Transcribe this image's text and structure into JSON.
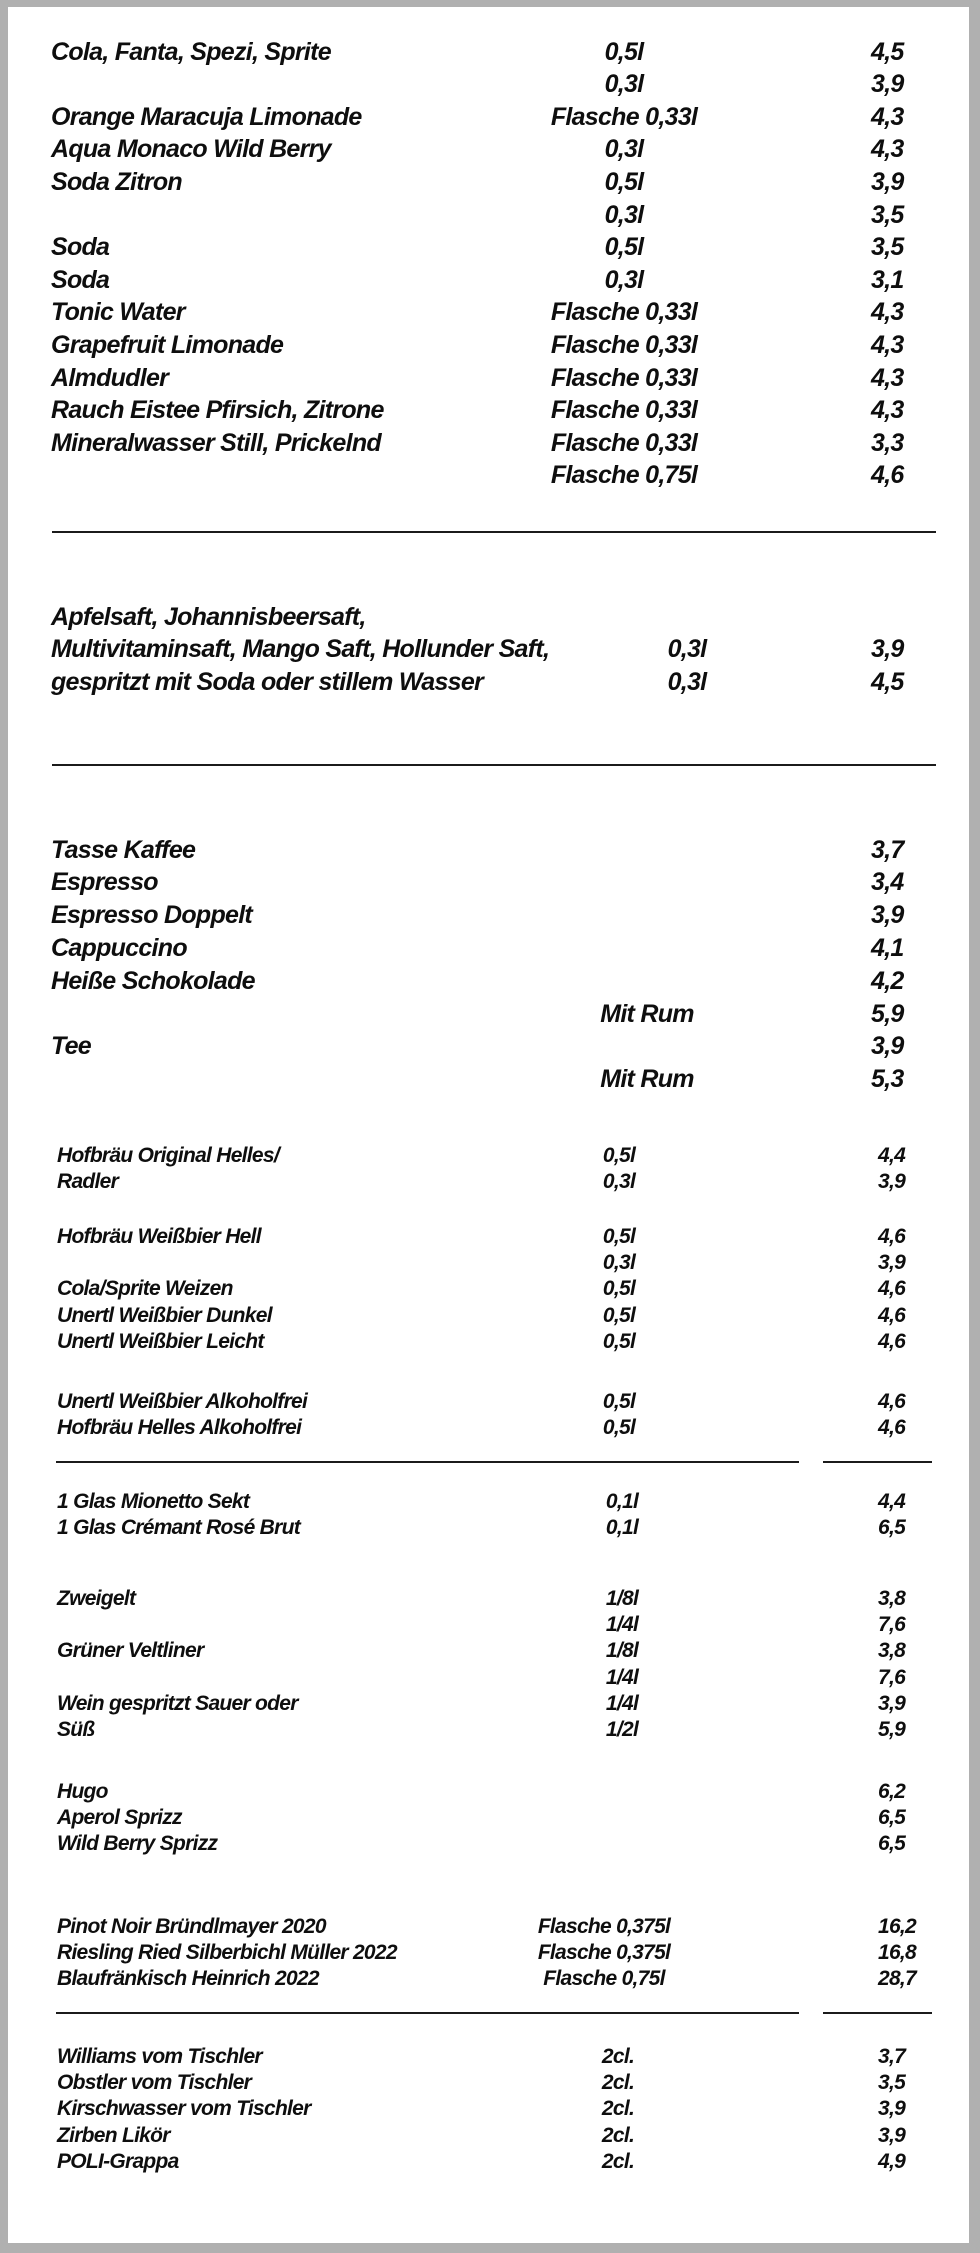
{
  "menu": {
    "sections": [
      {
        "id": "softdrinks",
        "groups": [
          [
            {
              "name": "Cola, Fanta, Spezi, Sprite",
              "size": "0,5l",
              "price": "4,5"
            },
            {
              "name": "",
              "size": "0,3l",
              "price": "3,9"
            },
            {
              "name": "Orange Maracuja Limonade",
              "size": "Flasche 0,33l",
              "price": "4,3"
            },
            {
              "name": "Aqua Monaco Wild Berry",
              "size": "0,3l",
              "price": "4,3"
            },
            {
              "name": "Soda Zitron",
              "size": "0,5l",
              "price": "3,9"
            },
            {
              "name": "",
              "size": "0,3l",
              "price": "3,5"
            },
            {
              "name": "Soda",
              "size": "0,5l",
              "price": "3,5"
            },
            {
              "name": "Soda",
              "size": "0,3l",
              "price": "3,1"
            },
            {
              "name": "Tonic Water",
              "size": "Flasche 0,33l",
              "price": "4,3"
            },
            {
              "name": "Grapefruit Limonade",
              "size": "Flasche 0,33l",
              "price": "4,3"
            },
            {
              "name": "Almdudler",
              "size": "Flasche 0,33l",
              "price": "4,3"
            },
            {
              "name": "Rauch Eistee Pfirsich, Zitrone",
              "size": "Flasche 0,33l",
              "price": "4,3"
            },
            {
              "name": "Mineralwasser Still, Prickelnd",
              "size": "Flasche 0,33l",
              "price": "3,3"
            },
            {
              "name": "",
              "size": "Flasche 0,75l",
              "price": "4,6"
            }
          ]
        ]
      },
      {
        "id": "juices",
        "groups": [
          [
            {
              "name": "Apfelsaft, Johannisbeersaft,",
              "size": "",
              "price": ""
            },
            {
              "name": "Multivitaminsaft, Mango Saft, Hollunder Saft,",
              "size": "0,3l",
              "price": "3,9"
            },
            {
              "name": "gespritzt mit Soda oder stillem Wasser",
              "size": "0,3l",
              "price": "4,5"
            }
          ]
        ]
      },
      {
        "id": "hot-drinks",
        "groups": [
          [
            {
              "name": "Tasse Kaffee",
              "size": "",
              "price": "3,7"
            },
            {
              "name": "Espresso",
              "size": "",
              "price": "3,4"
            },
            {
              "name": "Espresso Doppelt",
              "size": "",
              "price": "3,9"
            },
            {
              "name": "Cappuccino",
              "size": "",
              "price": "4,1"
            },
            {
              "name": "Heiße Schokolade",
              "size": "",
              "price": "4,2"
            },
            {
              "name": "",
              "size": "Mit Rum",
              "price": "5,9"
            },
            {
              "name": "Tee",
              "size": "",
              "price": "3,9"
            },
            {
              "name": "",
              "size": "Mit Rum",
              "price": "5,3"
            }
          ]
        ]
      },
      {
        "id": "beers",
        "groups": [
          [
            {
              "name": "Hofbräu Original Helles/",
              "size": "0,5l",
              "price": "4,4"
            },
            {
              "name": "Radler",
              "size": "0,3l",
              "price": "3,9"
            }
          ],
          [
            {
              "name": "Hofbräu Weißbier Hell",
              "size": "0,5l",
              "price": "4,6"
            },
            {
              "name": "",
              "size": "0,3l",
              "price": "3,9"
            },
            {
              "name": "Cola/Sprite Weizen",
              "size": "0,5l",
              "price": "4,6"
            },
            {
              "name": "Unertl Weißbier Dunkel",
              "size": "0,5l",
              "price": "4,6"
            },
            {
              "name": "Unertl Weißbier Leicht",
              "size": "0,5l",
              "price": "4,6"
            }
          ],
          [
            {
              "name": "Unertl Weißbier Alkoholfrei",
              "size": "0,5l",
              "price": "4,6"
            },
            {
              "name": "Hofbräu Helles Alkoholfrei",
              "size": "0,5l",
              "price": "4,6"
            }
          ]
        ]
      },
      {
        "id": "wines",
        "groups": [
          [
            {
              "name": "1 Glas Mionetto Sekt",
              "size": "0,1l",
              "price": "4,4"
            },
            {
              "name": "1 Glas Crémant Rosé Brut",
              "size": "0,1l",
              "price": "6,5"
            }
          ],
          [
            {
              "name": "Zweigelt",
              "size": "1/8l",
              "price": "3,8"
            },
            {
              "name": "",
              "size": "1/4l",
              "price": "7,6"
            },
            {
              "name": "Grüner Veltliner",
              "size": "1/8l",
              "price": "3,8"
            },
            {
              "name": "",
              "size": "1/4l",
              "price": "7,6"
            },
            {
              "name": "Wein gespritzt Sauer oder",
              "size": "1/4l",
              "price": "3,9"
            },
            {
              "name": "Süß",
              "size": "1/2l",
              "price": "5,9"
            }
          ],
          [
            {
              "name": "Hugo",
              "size": "",
              "price": "6,2"
            },
            {
              "name": "Aperol Sprizz",
              "size": "",
              "price": "6,5"
            },
            {
              "name": "Wild Berry Sprizz",
              "size": "",
              "price": "6,5"
            }
          ]
        ]
      },
      {
        "id": "bottled-wines",
        "groups": [
          [
            {
              "name": "Pinot Noir Bründlmayer 2020",
              "size": "Flasche 0,375l",
              "price": "16,2"
            },
            {
              "name": "Riesling Ried Silberbichl Müller 2022",
              "size": "Flasche 0,375l",
              "price": "16,8"
            },
            {
              "name": "Blaufränkisch Heinrich 2022",
              "size": "Flasche 0,75l",
              "price": "28,7"
            }
          ]
        ]
      },
      {
        "id": "schnaps",
        "groups": [
          [
            {
              "name": "Williams vom Tischler",
              "size": "2cl.",
              "price": "3,7"
            },
            {
              "name": "Obstler vom Tischler",
              "size": "2cl.",
              "price": "3,5"
            },
            {
              "name": "Kirschwasser vom Tischler",
              "size": "2cl.",
              "price": "3,9"
            },
            {
              "name": "Zirben Likör",
              "size": "2cl.",
              "price": "3,9"
            },
            {
              "name": "POLI-Grappa",
              "size": "2cl.",
              "price": "4,9"
            }
          ]
        ]
      }
    ]
  }
}
